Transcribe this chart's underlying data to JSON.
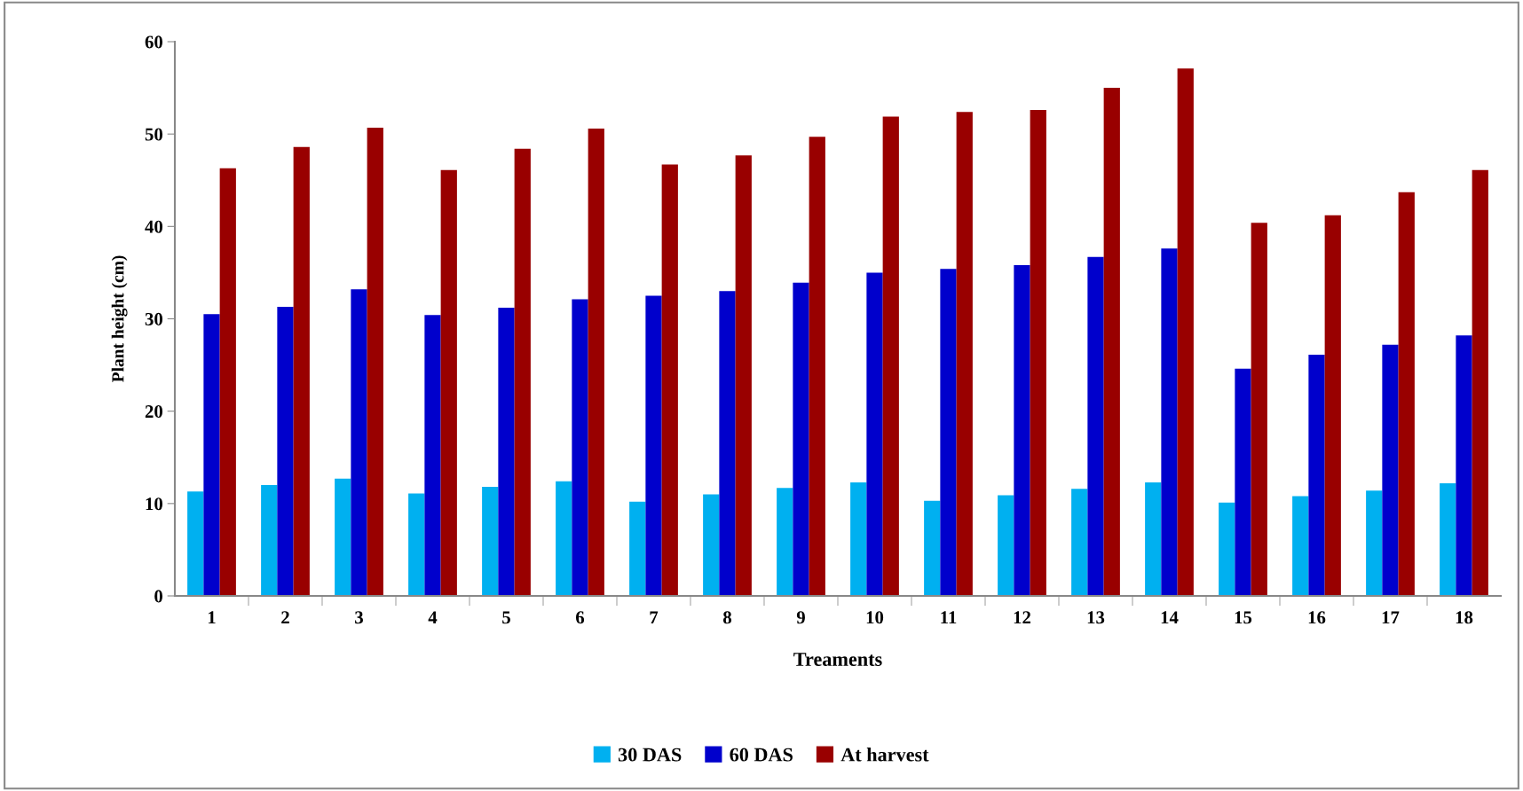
{
  "chart_data": {
    "type": "bar",
    "xlabel": "Treaments",
    "ylabel": "Plant height (cm)",
    "categories": [
      "1",
      "2",
      "3",
      "4",
      "5",
      "6",
      "7",
      "8",
      "9",
      "10",
      "11",
      "12",
      "13",
      "14",
      "15",
      "16",
      "17",
      "18"
    ],
    "series": [
      {
        "name": "30 DAS",
        "color": "#00b0f0",
        "values": [
          11.3,
          12.0,
          12.7,
          11.1,
          11.8,
          12.4,
          10.2,
          11.0,
          11.7,
          12.3,
          10.3,
          10.9,
          11.6,
          12.3,
          10.1,
          10.8,
          11.4,
          12.2
        ]
      },
      {
        "name": "60 DAS",
        "color": "#0000cc",
        "values": [
          30.5,
          31.3,
          33.2,
          30.4,
          31.2,
          32.1,
          32.5,
          33.0,
          33.9,
          35.0,
          35.4,
          35.8,
          36.7,
          37.6,
          24.6,
          26.1,
          27.2,
          28.2
        ]
      },
      {
        "name": "At harvest",
        "color": "#990000",
        "values": [
          46.3,
          48.6,
          50.7,
          46.1,
          48.4,
          50.6,
          46.7,
          47.7,
          49.7,
          51.9,
          52.4,
          52.6,
          55.0,
          57.1,
          40.4,
          41.2,
          43.7,
          46.1
        ]
      }
    ],
    "ylim": [
      0,
      60
    ],
    "yticks": [
      0,
      10,
      20,
      30,
      40,
      50,
      60
    ],
    "grid": false,
    "legend": "bottom"
  }
}
